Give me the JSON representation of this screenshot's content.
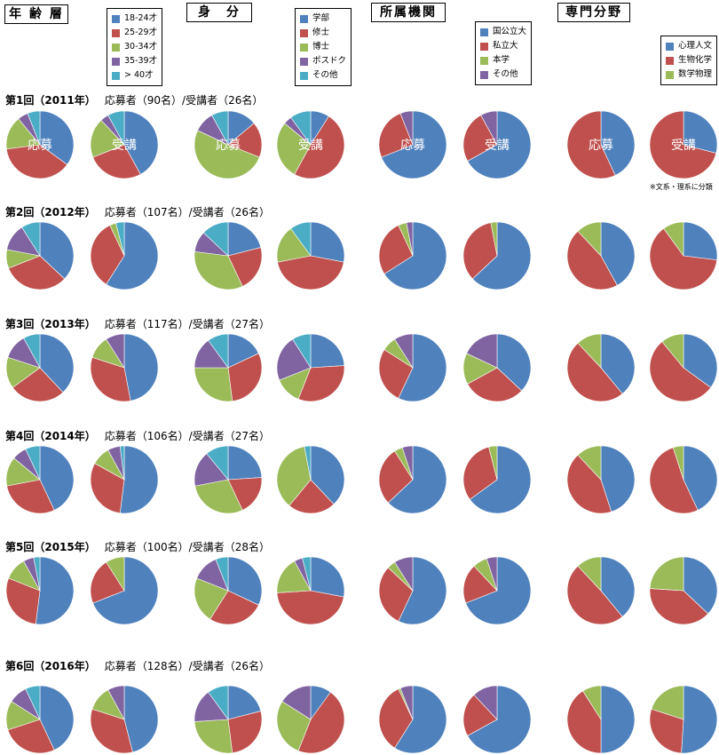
{
  "colors": {
    "blue": "#4f81bd",
    "red": "#c0504d",
    "green": "#9bbb59",
    "purple": "#8064a2",
    "cyan": "#4bacc6"
  },
  "headers": {
    "age": "年 齢 層",
    "status": "身　分",
    "affiliation": "所属機関",
    "field": "専門分野"
  },
  "legends": {
    "age": [
      "18-24才",
      "25-29才",
      "30-34才",
      "35-39才",
      "> 40才"
    ],
    "status": [
      "学部",
      "修士",
      "博士",
      "ポスドク",
      "その他"
    ],
    "affiliation": [
      "国公立大",
      "私立大",
      "本学",
      "その他"
    ],
    "field": [
      "心理人文",
      "生物化学",
      "数学物理"
    ]
  },
  "pie_labels": {
    "applicants": "応募",
    "attendees": "受講"
  },
  "field_note": "※文系・理系に分類",
  "rows": [
    {
      "title": "第1回（2011年）",
      "counts": "応募者（90名）/受講者（26名）"
    },
    {
      "title": "第2回（2012年）",
      "counts": "応募者（107名）/受講者（26名）"
    },
    {
      "title": "第3回（2013年）",
      "counts": "応募者（117名）/受講者（27名）"
    },
    {
      "title": "第4回（2014年）",
      "counts": "応募者（106名）/受講者（27名）"
    },
    {
      "title": "第5回（2015年）",
      "counts": "応募者（100名）/受講者（28名）"
    },
    {
      "title": "第6回（2016年）",
      "counts": "応募者（128名）/受講者（26名）"
    }
  ],
  "chart_data": {
    "type": "pie",
    "category_order": {
      "age": [
        "18-24才",
        "25-29才",
        "30-34才",
        "35-39才",
        "> 40才"
      ],
      "status": [
        "学部",
        "修士",
        "博士",
        "ポスドク",
        "その他"
      ],
      "affiliation": [
        "国公立大",
        "私立大",
        "本学",
        "その他"
      ],
      "field": [
        "心理人文",
        "生物化学",
        "数学物理"
      ]
    },
    "pies": [
      [
        {
          "age": [
            35,
            38,
            16,
            5,
            6
          ],
          "status": [
            14,
            17,
            51,
            10,
            8
          ],
          "affiliation": [
            69,
            25,
            0,
            6
          ],
          "field": [
            43,
            57,
            0
          ]
        },
        {
          "age": [
            42,
            27,
            19,
            4,
            8
          ],
          "status": [
            9,
            49,
            28,
            4,
            10
          ],
          "affiliation": [
            67,
            25,
            0,
            8
          ],
          "field": [
            29,
            71,
            0
          ]
        }
      ],
      [
        {
          "age": [
            37,
            32,
            9,
            13,
            9
          ],
          "status": [
            21,
            22,
            34,
            10,
            13
          ],
          "affiliation": [
            66,
            27,
            4,
            3
          ],
          "field": [
            42,
            46,
            12
          ]
        },
        {
          "age": [
            59,
            34,
            3,
            0,
            4
          ],
          "status": [
            28,
            44,
            18,
            0,
            10
          ],
          "affiliation": [
            63,
            34,
            3,
            0
          ],
          "field": [
            27,
            63,
            10
          ]
        }
      ],
      [
        {
          "age": [
            38,
            27,
            15,
            12,
            8
          ],
          "status": [
            18,
            30,
            27,
            15,
            10
          ],
          "affiliation": [
            57,
            27,
            7,
            9
          ],
          "field": [
            39,
            49,
            12
          ]
        },
        {
          "age": [
            47,
            33,
            11,
            9,
            0
          ],
          "status": [
            24,
            32,
            13,
            22,
            9
          ],
          "affiliation": [
            37,
            30,
            15,
            18
          ],
          "field": [
            35,
            54,
            11
          ]
        }
      ],
      [
        {
          "age": [
            43,
            29,
            14,
            7,
            7
          ],
          "status": [
            24,
            19,
            29,
            17,
            11
          ],
          "affiliation": [
            63,
            28,
            4,
            5
          ],
          "field": [
            45,
            43,
            12
          ]
        },
        {
          "age": [
            52,
            31,
            9,
            6,
            2
          ],
          "status": [
            38,
            23,
            36,
            0,
            3
          ],
          "affiliation": [
            65,
            31,
            4,
            0
          ],
          "field": [
            43,
            52,
            5
          ]
        }
      ],
      [
        {
          "age": [
            52,
            29,
            11,
            5,
            3
          ],
          "status": [
            32,
            27,
            22,
            13,
            6
          ],
          "affiliation": [
            57,
            30,
            4,
            9
          ],
          "field": [
            39,
            49,
            12
          ]
        },
        {
          "age": [
            69,
            22,
            9,
            0,
            0
          ],
          "status": [
            28,
            46,
            18,
            4,
            4
          ],
          "affiliation": [
            69,
            19,
            7,
            5
          ],
          "field": [
            37,
            39,
            24
          ]
        }
      ],
      [
        {
          "age": [
            43,
            27,
            14,
            9,
            7
          ],
          "status": [
            21,
            27,
            26,
            16,
            10
          ],
          "affiliation": [
            59,
            34,
            1,
            6
          ],
          "field": [
            50,
            41,
            9
          ]
        },
        {
          "age": [
            46,
            34,
            12,
            8,
            0
          ],
          "status": [
            10,
            46,
            28,
            16,
            0
          ],
          "affiliation": [
            67,
            21,
            0,
            12
          ],
          "field": [
            51,
            29,
            20
          ]
        }
      ]
    ]
  }
}
